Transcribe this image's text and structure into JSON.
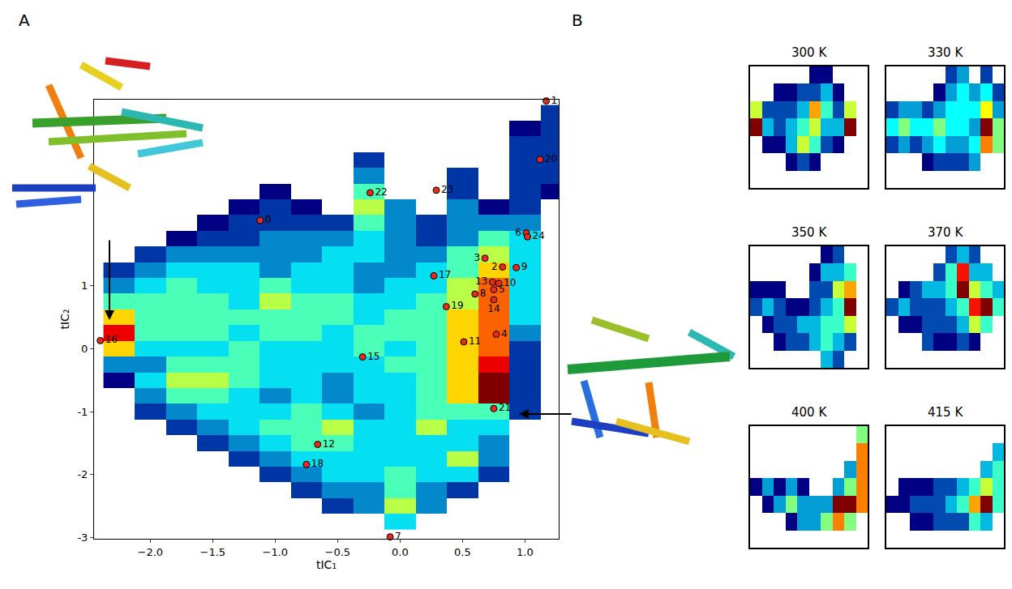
{
  "chart_data": [
    {
      "type": "heatmap",
      "annotations": [
        {
          "text": "A"
        }
      ],
      "x_label": "tIC₁",
      "y_label": "tIC₂",
      "xlim": [
        -2.45,
        1.27
      ],
      "ylim": [
        -3.02,
        3.96
      ],
      "xticks": [
        {
          "value": -2,
          "label": "−2.0"
        },
        {
          "value": -1.5,
          "label": "−1.5"
        },
        {
          "value": -1,
          "label": "−1.0"
        },
        {
          "value": -0.5,
          "label": "−0.5"
        },
        {
          "value": 0,
          "label": "0.0"
        },
        {
          "value": 0.5,
          "label": "0.5"
        },
        {
          "value": 1,
          "label": "1.0"
        }
      ],
      "yticks": [
        -3,
        -2,
        -1,
        0,
        1
      ],
      "grid": false,
      "x": [
        -2.25,
        -2.0,
        -1.75,
        -1.5,
        -1.25,
        -1.0,
        -0.75,
        -0.5,
        -0.25,
        0,
        0.25,
        0.5,
        0.75,
        1.0,
        1.25
      ],
      "y": [
        -2.75,
        -2.5,
        -2.25,
        -2.0,
        -1.75,
        -1.5,
        -1.25,
        -1.0,
        -0.75,
        -0.5,
        -0.25,
        0,
        0.25,
        0.5,
        0.75,
        1.0,
        1.25,
        1.5,
        1.75,
        2.0,
        2.25,
        2.5,
        2.75,
        3.0,
        3.25,
        3.5,
        3.75
      ],
      "z": [
        [
          null,
          null,
          null,
          null,
          null,
          null,
          null,
          null,
          null,
          4,
          null,
          null,
          null,
          null,
          null
        ],
        [
          null,
          null,
          null,
          null,
          null,
          null,
          null,
          2,
          3,
          6,
          3,
          null,
          null,
          null,
          null
        ],
        [
          null,
          null,
          null,
          null,
          null,
          null,
          2,
          3,
          3,
          5,
          3,
          2,
          null,
          null,
          null
        ],
        [
          null,
          null,
          null,
          null,
          null,
          2,
          3,
          4,
          4,
          5,
          4,
          4,
          2,
          null,
          null
        ],
        [
          null,
          null,
          null,
          null,
          2,
          3,
          4,
          4,
          4,
          4,
          4,
          6,
          3,
          null,
          null
        ],
        [
          null,
          null,
          null,
          2,
          3,
          4,
          5,
          5,
          4,
          4,
          4,
          4,
          3,
          null,
          null
        ],
        [
          null,
          null,
          2,
          3,
          4,
          5,
          5,
          6,
          4,
          4,
          6,
          4,
          4,
          null,
          null
        ],
        [
          null,
          2,
          3,
          4,
          4,
          4,
          5,
          4,
          3,
          4,
          5,
          5,
          5,
          2,
          null
        ],
        [
          null,
          3,
          5,
          5,
          4,
          3,
          4,
          3,
          4,
          4,
          5,
          7,
          10,
          2,
          null
        ],
        [
          1,
          4,
          6,
          6,
          5,
          4,
          4,
          3,
          4,
          4,
          5,
          7,
          10,
          2,
          null
        ],
        [
          3,
          3,
          5,
          5,
          5,
          4,
          4,
          4,
          4,
          5,
          5,
          7,
          9,
          2,
          null
        ],
        [
          7,
          4,
          4,
          4,
          5,
          4,
          4,
          4,
          5,
          4,
          5,
          7,
          8,
          2,
          null
        ],
        [
          9,
          5,
          5,
          5,
          4,
          5,
          5,
          4,
          5,
          5,
          5,
          7,
          8,
          3,
          null
        ],
        [
          7,
          5,
          5,
          5,
          5,
          5,
          5,
          5,
          4,
          5,
          5,
          7,
          8,
          4,
          null
        ],
        [
          5,
          5,
          5,
          5,
          4,
          6,
          5,
          5,
          4,
          4,
          5,
          6,
          8,
          4,
          null
        ],
        [
          3,
          4,
          5,
          4,
          4,
          5,
          4,
          4,
          3,
          4,
          4,
          6,
          8,
          4,
          null
        ],
        [
          2,
          3,
          4,
          4,
          4,
          3,
          4,
          4,
          3,
          3,
          4,
          5,
          7,
          4,
          null
        ],
        [
          null,
          2,
          3,
          3,
          3,
          3,
          3,
          4,
          4,
          3,
          3,
          5,
          6,
          4,
          null
        ],
        [
          null,
          null,
          1,
          2,
          2,
          3,
          3,
          3,
          4,
          3,
          2,
          3,
          5,
          4,
          null
        ],
        [
          null,
          null,
          null,
          1,
          2,
          2,
          2,
          2,
          5,
          3,
          2,
          3,
          3,
          3,
          null
        ],
        [
          null,
          null,
          null,
          null,
          1,
          2,
          1,
          null,
          6,
          3,
          null,
          3,
          1,
          2,
          null
        ],
        [
          null,
          null,
          null,
          null,
          null,
          1,
          null,
          null,
          5,
          null,
          null,
          2,
          null,
          2,
          1
        ],
        [
          null,
          null,
          null,
          null,
          null,
          null,
          null,
          null,
          3,
          null,
          null,
          2,
          null,
          2,
          2
        ],
        [
          null,
          null,
          null,
          null,
          null,
          null,
          null,
          null,
          2,
          null,
          null,
          null,
          null,
          2,
          2
        ],
        [
          null,
          null,
          null,
          null,
          null,
          null,
          null,
          null,
          null,
          null,
          null,
          null,
          null,
          2,
          2
        ],
        [
          null,
          null,
          null,
          null,
          null,
          null,
          null,
          null,
          null,
          null,
          null,
          null,
          null,
          1,
          2
        ],
        [
          null,
          null,
          null,
          null,
          null,
          null,
          null,
          null,
          null,
          null,
          null,
          null,
          null,
          null,
          2
        ]
      ],
      "points": {
        "color": "#e8291c",
        "marker": "circle",
        "labels": [
          "0",
          "1",
          "2",
          "3",
          "4",
          "5",
          "6",
          "7",
          "8",
          "9",
          "10",
          "11",
          "12",
          "13",
          "14",
          "15",
          "16",
          "17",
          "18",
          "19",
          "20",
          "21",
          "22",
          "23",
          "24"
        ],
        "x": [
          -1.12,
          1.17,
          0.82,
          0.68,
          0.77,
          0.75,
          1.01,
          -0.08,
          0.6,
          0.93,
          0.79,
          0.51,
          -0.66,
          0.74,
          0.75,
          -0.3,
          -2.4,
          0.27,
          -0.75,
          0.37,
          1.12,
          0.75,
          -0.24,
          0.29,
          1.02
        ],
        "y": [
          2.04,
          3.94,
          1.3,
          1.44,
          0.23,
          0.94,
          1.84,
          -2.99,
          0.87,
          1.29,
          1.04,
          0.11,
          -1.52,
          1.06,
          0.78,
          -0.13,
          0.13,
          1.16,
          -1.84,
          0.67,
          3.01,
          -0.95,
          2.48,
          2.52,
          1.78
        ]
      }
    },
    {
      "type": "heatmap",
      "title": "300 K",
      "annotations": [
        {
          "text": "B"
        }
      ],
      "tick_labels": false,
      "z": [
        [
          null,
          null,
          null,
          null,
          null,
          null,
          null,
          null,
          null,
          null
        ],
        [
          null,
          null,
          null,
          2,
          3,
          2,
          null,
          null,
          null,
          null
        ],
        [
          null,
          2,
          2,
          4,
          6,
          5,
          3,
          2,
          null,
          null
        ],
        [
          9,
          4,
          3,
          4,
          5,
          6,
          4,
          4,
          9,
          null
        ],
        [
          6,
          3,
          3,
          3,
          4,
          7,
          5,
          3,
          6,
          null
        ],
        [
          null,
          null,
          2,
          2,
          3,
          3,
          4,
          2,
          null,
          null
        ],
        [
          null,
          null,
          null,
          null,
          null,
          2,
          2,
          null,
          null,
          null
        ]
      ]
    },
    {
      "type": "heatmap",
      "title": "330 K",
      "tick_labels": false,
      "z": [
        [
          null,
          null,
          null,
          null,
          null,
          null,
          null,
          null,
          null,
          null
        ],
        [
          null,
          null,
          null,
          2,
          3,
          3,
          3,
          4,
          null,
          null
        ],
        [
          3,
          4,
          3,
          4,
          5,
          4,
          4,
          5,
          8,
          6
        ],
        [
          5,
          6,
          5,
          5,
          6,
          5,
          5,
          4,
          10,
          6
        ],
        [
          3,
          4,
          4,
          3,
          4,
          5,
          5,
          5,
          7,
          4
        ],
        [
          null,
          null,
          null,
          null,
          2,
          4,
          5,
          4,
          5,
          3
        ],
        [
          null,
          null,
          null,
          null,
          null,
          3,
          4,
          null,
          3,
          null
        ]
      ]
    },
    {
      "type": "heatmap",
      "title": "350 K",
      "tick_labels": false,
      "z": [
        [
          null,
          null,
          null,
          null,
          null,
          null,
          4,
          3,
          null,
          null
        ],
        [
          null,
          null,
          2,
          3,
          3,
          4,
          5,
          4,
          3,
          null
        ],
        [
          null,
          2,
          3,
          3,
          4,
          4,
          5,
          5,
          6,
          null
        ],
        [
          3,
          4,
          3,
          2,
          2,
          3,
          4,
          5,
          9,
          null
        ],
        [
          2,
          2,
          2,
          null,
          null,
          3,
          3,
          6,
          7,
          null
        ],
        [
          null,
          null,
          null,
          null,
          null,
          2,
          4,
          4,
          5,
          null
        ],
        [
          null,
          null,
          null,
          null,
          null,
          null,
          2,
          3,
          null,
          null
        ]
      ]
    },
    {
      "type": "heatmap",
      "title": "370 K",
      "tick_labels": false,
      "z": [
        [
          null,
          null,
          null,
          null,
          null,
          null,
          null,
          null,
          null,
          null
        ],
        [
          null,
          null,
          null,
          3,
          2,
          2,
          3,
          2,
          null,
          null
        ],
        [
          null,
          2,
          2,
          3,
          3,
          3,
          4,
          6,
          5,
          null
        ],
        [
          3,
          4,
          3,
          3,
          3,
          4,
          5,
          8,
          9,
          5
        ],
        [
          null,
          2,
          3,
          4,
          4,
          5,
          9,
          6,
          5,
          4
        ],
        [
          null,
          null,
          null,
          null,
          3,
          5,
          8,
          4,
          4,
          null
        ],
        [
          null,
          null,
          null,
          null,
          null,
          3,
          4,
          3,
          null,
          null
        ]
      ]
    },
    {
      "type": "heatmap",
      "title": "400 K",
      "tick_labels": false,
      "z": [
        [
          null,
          null,
          null,
          null,
          null,
          null,
          null,
          null,
          null,
          null
        ],
        [
          null,
          null,
          null,
          2,
          3,
          3,
          4,
          5,
          4,
          null
        ],
        [
          null,
          2,
          3,
          4,
          3,
          3,
          3,
          6,
          6,
          5
        ],
        [
          2,
          3,
          2,
          3,
          2,
          null,
          null,
          3,
          4,
          5
        ],
        [
          null,
          null,
          null,
          null,
          null,
          null,
          null,
          null,
          3,
          5
        ],
        [
          null,
          null,
          null,
          null,
          null,
          null,
          null,
          null,
          null,
          5
        ],
        [
          null,
          null,
          null,
          null,
          null,
          null,
          null,
          null,
          null,
          4
        ]
      ]
    },
    {
      "type": "heatmap",
      "title": "415 K",
      "tick_labels": false,
      "z": [
        [
          null,
          null,
          null,
          null,
          null,
          null,
          null,
          null,
          null,
          null
        ],
        [
          null,
          null,
          2,
          2,
          3,
          3,
          3,
          5,
          4,
          null
        ],
        [
          2,
          2,
          3,
          3,
          3,
          4,
          5,
          7,
          9,
          5
        ],
        [
          null,
          2,
          2,
          2,
          3,
          3,
          4,
          5,
          6,
          5
        ],
        [
          null,
          null,
          null,
          null,
          null,
          null,
          null,
          null,
          4,
          5
        ],
        [
          null,
          null,
          null,
          null,
          null,
          null,
          null,
          null,
          null,
          4
        ],
        [
          null,
          null,
          null,
          null,
          null,
          null,
          null,
          null,
          null,
          null
        ]
      ]
    }
  ]
}
